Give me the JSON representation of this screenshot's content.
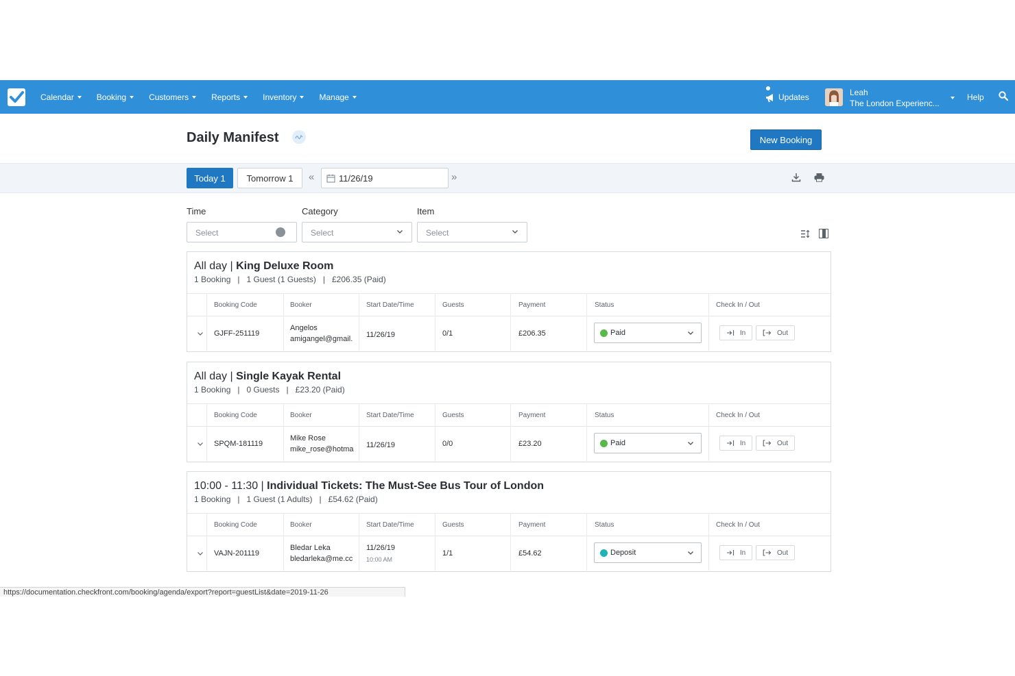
{
  "nav": {
    "items": [
      {
        "label": "Calendar"
      },
      {
        "label": "Booking"
      },
      {
        "label": "Customers"
      },
      {
        "label": "Reports"
      },
      {
        "label": "Inventory"
      },
      {
        "label": "Manage"
      }
    ],
    "updates_label": "Updates",
    "user_name": "Leah",
    "user_company": "The London Experienc...",
    "help_label": "Help"
  },
  "header": {
    "title": "Daily Manifest",
    "new_booking_label": "New Booking"
  },
  "datebar": {
    "today_label": "Today 1",
    "tomorrow_label": "Tomorrow 1",
    "date_value": "11/26/19"
  },
  "filters": {
    "time_label": "Time",
    "time_placeholder": "Select",
    "category_label": "Category",
    "category_placeholder": "Select",
    "item_label": "Item",
    "item_placeholder": "Select"
  },
  "table_headers": {
    "booking_code": "Booking Code",
    "booker": "Booker",
    "start": "Start Date/Time",
    "guests": "Guests",
    "payment": "Payment",
    "status": "Status",
    "checkin": "Check In / Out"
  },
  "checkin_labels": {
    "in": "In",
    "out": "Out"
  },
  "sections": [
    {
      "time": "All day",
      "name": "King Deluxe Room",
      "summary": "1 Booking   |   1 Guest (1 Guests)   |   £206.35 (Paid)",
      "row": {
        "code": "GJFF-251119",
        "booker_name": "Angelos",
        "booker_email": "amigangel@gmail.",
        "start_date": "11/26/19",
        "start_time": "",
        "guests": "0/1",
        "payment": "£206.35",
        "status": "Paid",
        "status_color": "#58b848"
      }
    },
    {
      "time": "All day",
      "name": "Single Kayak Rental",
      "summary": "1 Booking   |   0 Guests   |   £23.20 (Paid)",
      "row": {
        "code": "SPQM-181119",
        "booker_name": "Mike Rose",
        "booker_email": "mike_rose@hotma",
        "start_date": "11/26/19",
        "start_time": "",
        "guests": "0/0",
        "payment": "£23.20",
        "status": "Paid",
        "status_color": "#58b848"
      }
    },
    {
      "time": "10:00 - 11:30",
      "name": "Individual Tickets: The Must-See Bus Tour of London",
      "summary": "1 Booking   |   1 Guest (1 Adults)   |   £54.62 (Paid)",
      "row": {
        "code": "VAJN-201119",
        "booker_name": "Bledar Leka",
        "booker_email": "bledarleka@me.cc",
        "start_date": "11/26/19",
        "start_time": "10:00 AM",
        "guests": "1/1",
        "payment": "£54.62",
        "status": "Deposit",
        "status_color": "#1fb3b3"
      }
    }
  ],
  "status_url": "https://documentation.checkfront.com/booking/agenda/export?report=guestList&date=2019-11-26",
  "colors": {
    "brand": "#2f8fd8",
    "button": "#1f78c1"
  }
}
